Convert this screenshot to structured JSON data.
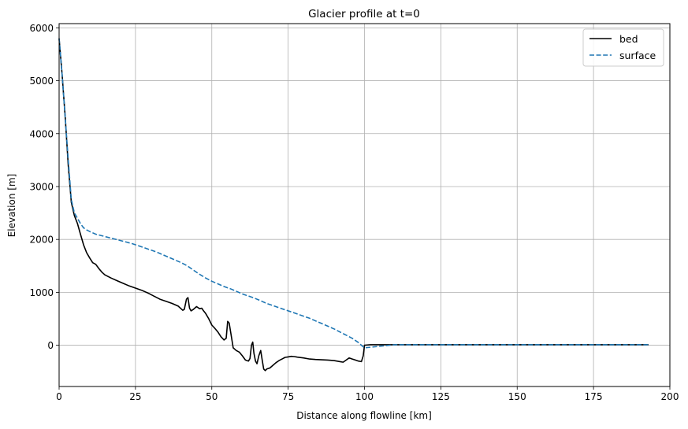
{
  "chart_data": {
    "type": "line",
    "title": "Glacier profile at t=0",
    "xlabel": "Distance along flowline [km]",
    "ylabel": "Elevation [m]",
    "xlim": [
      0,
      200
    ],
    "ylim": [
      -780,
      6080
    ],
    "xticks": [
      0,
      25,
      50,
      75,
      100,
      125,
      150,
      175,
      200
    ],
    "yticks": [
      0,
      1000,
      2000,
      3000,
      4000,
      5000,
      6000
    ],
    "xtick_labels": [
      "0",
      "25",
      "50",
      "75",
      "100",
      "125",
      "150",
      "175",
      "200"
    ],
    "ytick_labels": [
      "0",
      "1000",
      "2000",
      "3000",
      "4000",
      "5000",
      "6000"
    ],
    "grid": true,
    "legend_position": "top-right",
    "series": [
      {
        "name": "bed",
        "color": "#000000",
        "dash": "solid",
        "x": [
          0,
          1,
          2,
          3,
          4,
          5,
          6,
          7,
          8,
          9,
          10,
          11,
          12,
          13,
          14,
          15,
          17,
          19,
          21,
          23,
          25,
          27,
          29,
          31,
          33,
          35,
          37,
          39,
          40.5,
          41,
          41.7,
          42.2,
          42.7,
          43.2,
          44,
          45,
          46,
          46.7,
          47.3,
          48,
          49,
          50,
          51,
          52,
          53,
          54,
          54.7,
          55.2,
          55.7,
          56.3,
          57,
          58,
          59,
          60,
          61,
          62,
          62.5,
          63,
          63.4,
          63.8,
          64.3,
          64.8,
          65.4,
          66,
          66.5,
          67,
          67.5,
          68,
          69,
          70,
          71,
          72,
          73,
          74,
          75,
          76,
          77,
          78,
          80,
          82,
          84,
          86,
          88,
          90,
          92,
          93,
          94,
          95,
          96,
          97,
          98,
          99,
          99.6,
          100,
          102,
          110,
          120,
          130,
          140,
          150,
          160,
          170,
          180,
          193
        ],
        "y": [
          5800,
          5100,
          4300,
          3400,
          2700,
          2450,
          2300,
          2100,
          1900,
          1750,
          1650,
          1560,
          1530,
          1450,
          1380,
          1330,
          1270,
          1220,
          1170,
          1120,
          1080,
          1040,
          990,
          930,
          870,
          830,
          790,
          740,
          660,
          680,
          870,
          900,
          700,
          650,
          680,
          730,
          690,
          700,
          650,
          600,
          500,
          380,
          320,
          250,
          160,
          100,
          130,
          450,
          420,
          200,
          -50,
          -100,
          -130,
          -200,
          -280,
          -300,
          -250,
          0,
          60,
          -150,
          -300,
          -350,
          -200,
          -100,
          -280,
          -450,
          -480,
          -450,
          -430,
          -380,
          -330,
          -290,
          -260,
          -230,
          -220,
          -210,
          -215,
          -225,
          -240,
          -260,
          -270,
          -275,
          -280,
          -290,
          -310,
          -320,
          -280,
          -240,
          -260,
          -280,
          -300,
          -310,
          -200,
          0,
          10,
          10,
          10,
          10,
          10,
          10,
          10,
          10,
          10,
          10
        ]
      },
      {
        "name": "surface",
        "color": "#1f77b4",
        "dash": "dashed",
        "x": [
          0,
          1,
          2,
          3,
          4,
          5,
          6,
          7,
          8,
          9,
          10,
          12,
          14,
          16,
          18,
          20,
          22,
          24,
          26,
          28,
          30,
          32,
          34,
          36,
          38,
          40,
          42,
          44,
          46,
          48,
          50,
          52,
          54,
          56,
          58,
          60,
          62,
          64,
          66,
          68,
          70,
          72,
          74,
          76,
          78,
          80,
          82,
          84,
          86,
          88,
          90,
          92,
          94,
          96,
          98,
          99,
          100,
          110,
          120,
          130,
          140,
          150,
          160,
          170,
          180,
          193
        ],
        "y": [
          5800,
          5100,
          4300,
          3500,
          2750,
          2500,
          2400,
          2300,
          2220,
          2180,
          2150,
          2100,
          2070,
          2040,
          2010,
          1980,
          1950,
          1920,
          1880,
          1840,
          1800,
          1760,
          1710,
          1660,
          1610,
          1560,
          1500,
          1420,
          1340,
          1270,
          1210,
          1160,
          1110,
          1070,
          1020,
          970,
          930,
          890,
          840,
          790,
          750,
          710,
          670,
          630,
          590,
          550,
          510,
          460,
          410,
          360,
          310,
          250,
          190,
          130,
          50,
          0,
          -50,
          10,
          10,
          10,
          10,
          10,
          10,
          10,
          10,
          10
        ]
      }
    ]
  }
}
